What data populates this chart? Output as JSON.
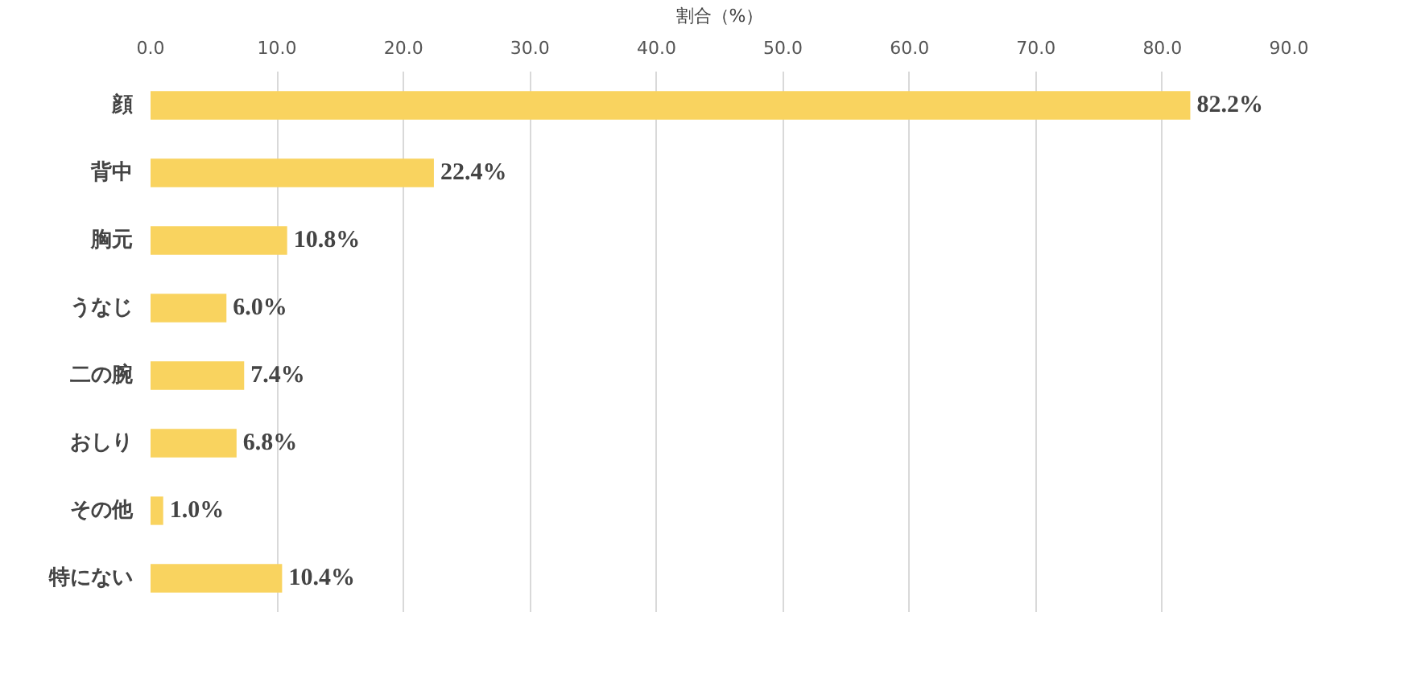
{
  "chart_data": {
    "type": "bar",
    "orientation": "horizontal",
    "xlabel": "割合（%）",
    "categories": [
      "顔",
      "背中",
      "胸元",
      "うなじ",
      "二の腕",
      "おしり",
      "その他",
      "特にない"
    ],
    "values": [
      82.2,
      22.4,
      10.8,
      6.0,
      7.4,
      6.8,
      1.0,
      10.4
    ],
    "value_labels": [
      "82.2%",
      "22.4%",
      "10.8%",
      "6.0%",
      "7.4%",
      "6.8%",
      "1.0%",
      "10.4%"
    ],
    "color": "#f9d35f",
    "xlim": [
      0,
      90
    ],
    "xticks": [
      {
        "value": 0,
        "label": "0.0"
      },
      {
        "value": 10,
        "label": "10.0"
      },
      {
        "value": 20,
        "label": "20.0"
      },
      {
        "value": 30,
        "label": "30.0"
      },
      {
        "value": 40,
        "label": "40.0"
      },
      {
        "value": 50,
        "label": "50.0"
      },
      {
        "value": 60,
        "label": "60.0"
      },
      {
        "value": 70,
        "label": "70.0"
      },
      {
        "value": 80,
        "label": "80.0"
      },
      {
        "value": 90,
        "label": "90.0"
      }
    ],
    "grid": "x"
  }
}
